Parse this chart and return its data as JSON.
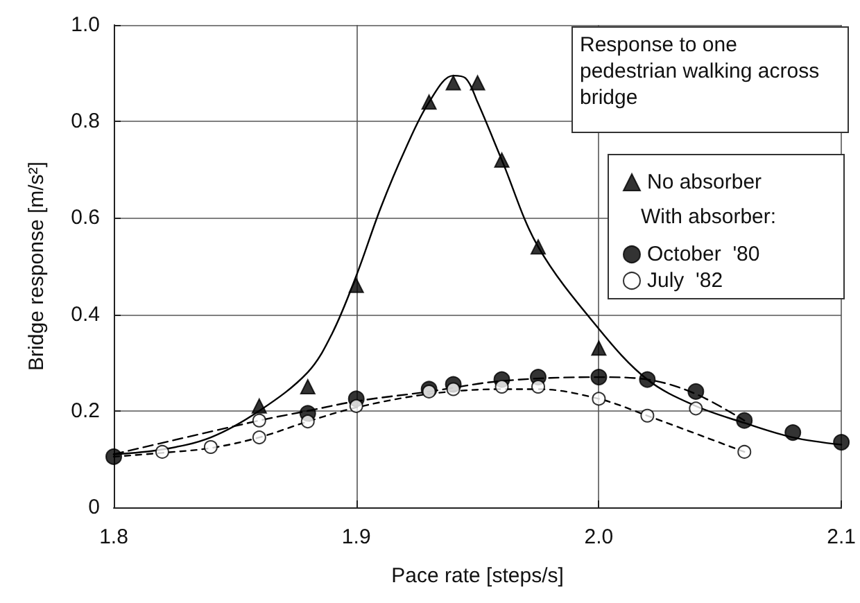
{
  "chart_data": {
    "type": "scatter",
    "xlabel": "Pace rate [steps/s]",
    "ylabel": "Bridge response [m/s²]",
    "annotations": [
      "Response to one pedestrian walking across bridge"
    ],
    "legend_title": "With absorber:",
    "xlim": [
      1.8,
      2.1
    ],
    "xticks": [
      1.8,
      1.9,
      {
        "value": 2.0,
        "label": "2.0"
      },
      2.1
    ],
    "ylim": [
      0,
      1.0
    ],
    "yticks": [
      0,
      0.2,
      0.4,
      0.6,
      0.8,
      {
        "value": 1.0,
        "label": "1.0"
      }
    ],
    "grid": true,
    "legend": "right",
    "series": [
      {
        "name": "No absorber",
        "marker": "triangle",
        "color": "#000000",
        "x": [
          1.86,
          1.88,
          1.9,
          1.93,
          1.94,
          1.95,
          1.96,
          1.975,
          2.0
        ],
        "values": [
          0.21,
          0.25,
          0.46,
          0.84,
          0.88,
          0.88,
          0.72,
          0.54,
          0.33
        ]
      },
      {
        "name": "October  '80",
        "marker": "circle",
        "color": "#000000",
        "x": [
          1.8,
          1.88,
          1.9,
          1.93,
          1.94,
          1.96,
          1.975,
          2.0,
          2.02,
          2.04,
          2.06,
          2.08,
          2.1
        ],
        "values": [
          0.105,
          0.195,
          0.225,
          0.245,
          0.255,
          0.265,
          0.27,
          0.27,
          0.265,
          0.24,
          0.18,
          0.155,
          0.135
        ]
      },
      {
        "name": "July  '82",
        "marker": "circle",
        "color": "#ffffff",
        "x": [
          1.82,
          1.84,
          1.86,
          1.86,
          1.88,
          1.9,
          1.93,
          1.94,
          1.96,
          1.975,
          2.0,
          2.02,
          2.04,
          2.06
        ],
        "values": [
          0.115,
          0.125,
          0.145,
          0.18,
          0.178,
          0.21,
          0.24,
          0.245,
          0.25,
          0.25,
          0.225,
          0.19,
          0.205,
          0.115
        ]
      },
      {
        "type": "line",
        "marker": "none",
        "line_style": "solid",
        "color": "#000000",
        "x": [
          1.8,
          1.82,
          1.84,
          1.86,
          1.88,
          1.89,
          1.9,
          1.91,
          1.92,
          1.93,
          1.94,
          1.945,
          1.95,
          1.96,
          1.975,
          2.0,
          2.02,
          2.04,
          2.06,
          2.08,
          2.1
        ],
        "values": [
          0.11,
          0.12,
          0.145,
          0.2,
          0.28,
          0.36,
          0.48,
          0.62,
          0.74,
          0.84,
          0.895,
          0.89,
          0.84,
          0.72,
          0.54,
          0.37,
          0.265,
          0.21,
          0.175,
          0.145,
          0.13
        ]
      },
      {
        "type": "line",
        "marker": "none",
        "line_style": "dashed",
        "color": "#000000",
        "x": [
          1.8,
          1.86,
          1.88,
          1.9,
          1.93,
          1.96,
          2.0,
          2.02,
          2.04,
          2.06
        ],
        "values": [
          0.11,
          0.18,
          0.2,
          0.22,
          0.24,
          0.262,
          0.27,
          0.265,
          0.235,
          0.18
        ]
      },
      {
        "type": "line",
        "marker": "none",
        "line_style": "dotted",
        "color": "#000000",
        "x": [
          1.8,
          1.82,
          1.84,
          1.86,
          1.88,
          1.9,
          1.93,
          1.96,
          1.975,
          2.0,
          2.02,
          2.06
        ],
        "values": [
          0.105,
          0.113,
          0.123,
          0.145,
          0.178,
          0.207,
          0.235,
          0.245,
          0.245,
          0.225,
          0.19,
          0.115
        ]
      }
    ]
  }
}
